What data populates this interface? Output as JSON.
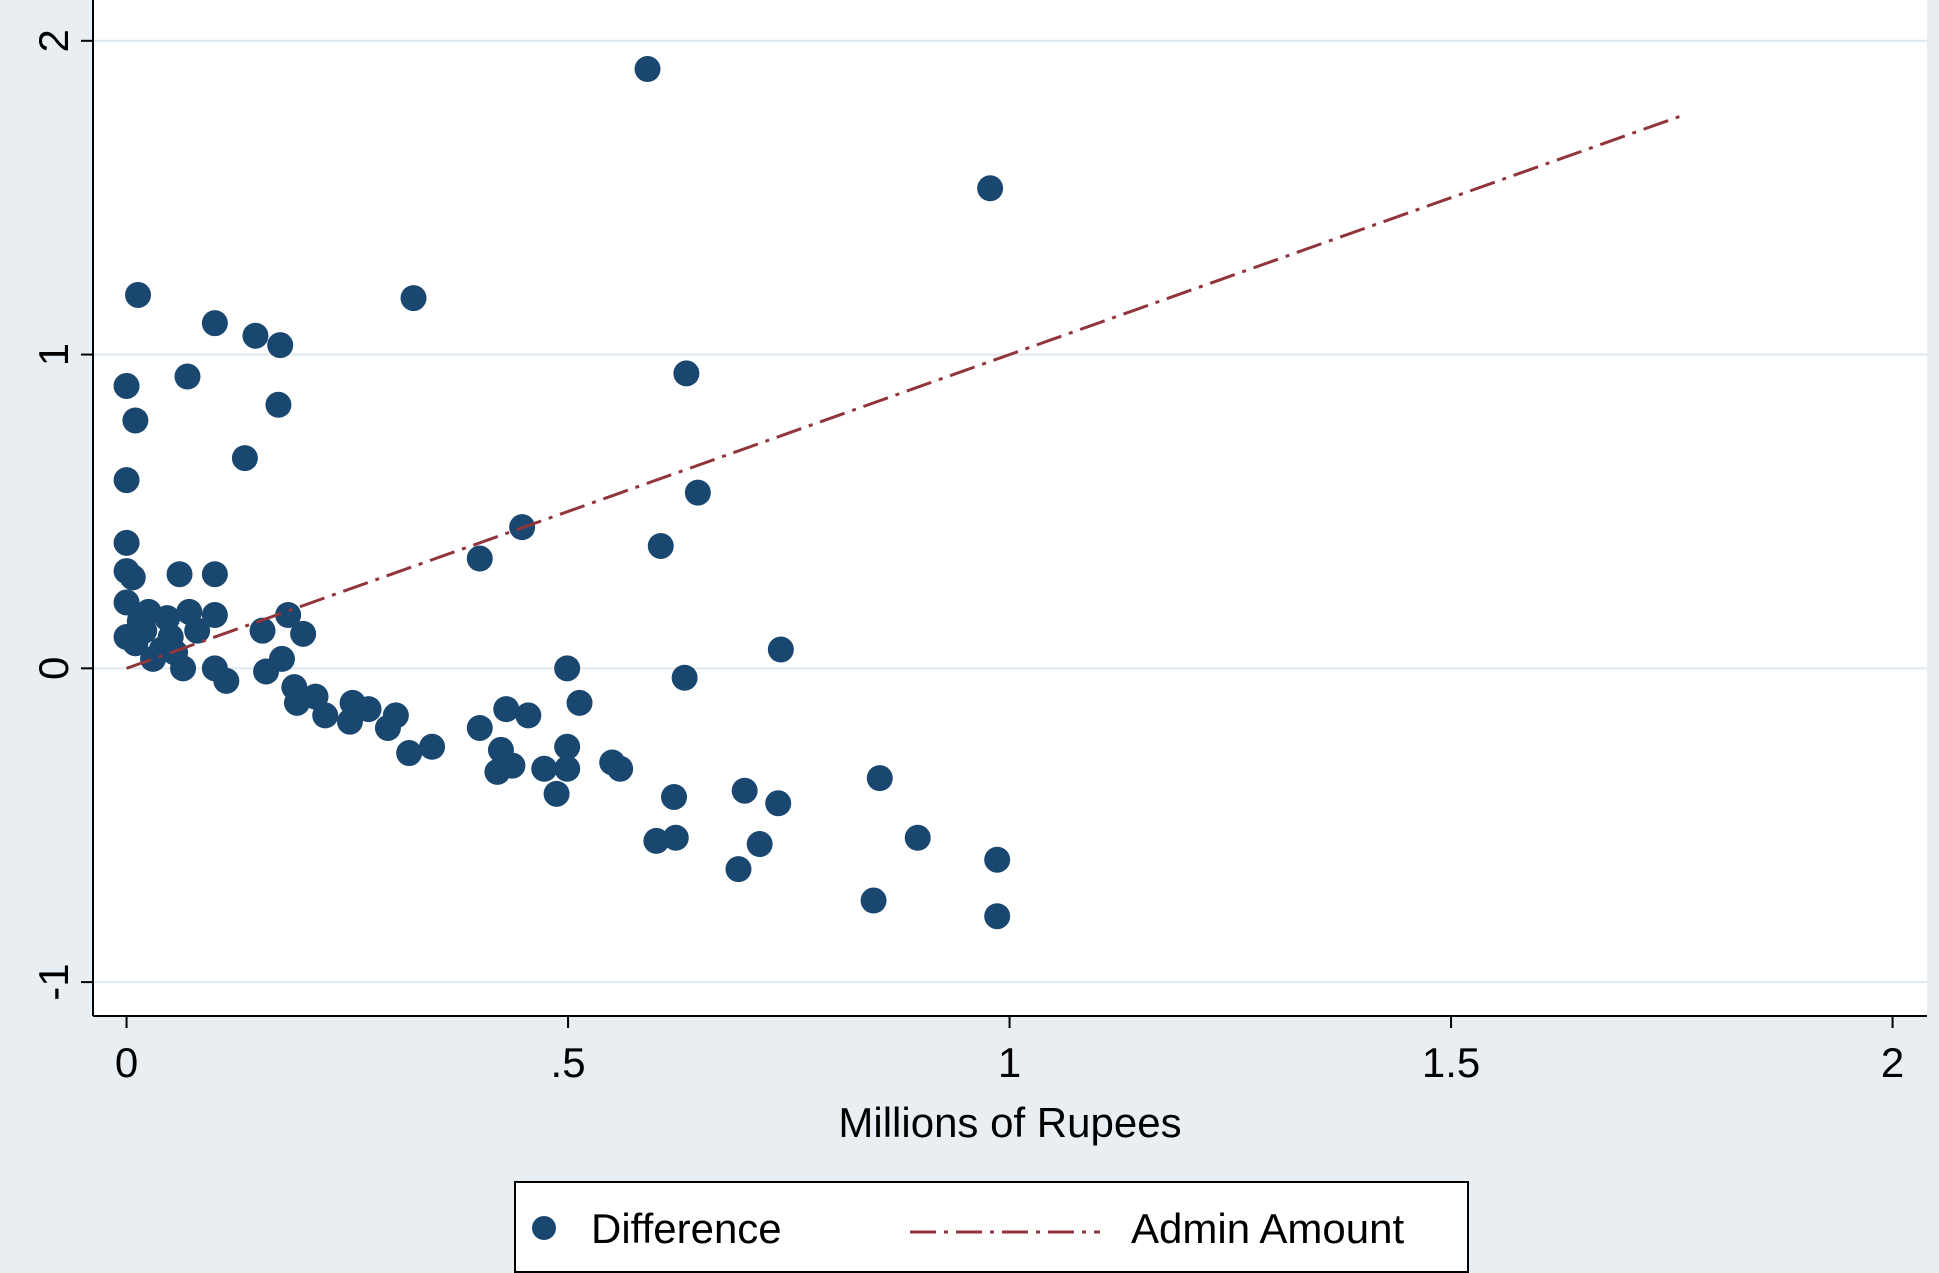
{
  "chart_data": {
    "type": "scatter",
    "x_label": "Millions of Rupees",
    "xlim": [
      -0.038,
      2.039
    ],
    "ylim": [
      -1.108,
      2.13
    ],
    "xticks": [
      0,
      {
        "value": 0.5,
        "label": ".5"
      },
      1,
      1.5,
      2
    ],
    "yticks": [
      -1,
      0,
      1,
      2
    ],
    "grid": true,
    "series": [
      {
        "name": "Difference",
        "color": "#1a476f",
        "type": "scatter",
        "x": [
          0.59,
          0.978,
          0.013,
          0.325,
          0.1,
          0.146,
          0.174,
          0,
          0.069,
          0.634,
          0.172,
          0.01,
          0.134,
          0,
          0.647,
          0.448,
          0,
          0.605,
          0.4,
          0,
          0.007,
          0.06,
          0.1,
          0,
          0,
          0.025,
          0.046,
          0.071,
          0.1,
          0.01,
          0.04,
          0.064,
          0.1,
          0.113,
          0.154,
          0.158,
          0.176,
          0.183,
          0.2,
          0.19,
          0.193,
          0.214,
          0.225,
          0.253,
          0.256,
          0.274,
          0.296,
          0.305,
          0.32,
          0.346,
          0.4,
          0.43,
          0.455,
          0.424,
          0.42,
          0.437,
          0.473,
          0.487,
          0.499,
          0.499,
          0.499,
          0.513,
          0.55,
          0.559,
          0.632,
          0.62,
          0.6,
          0.622,
          0.7,
          0.738,
          0.717,
          0.693,
          0.741,
          0.853,
          0.896,
          0.846,
          0.986,
          0.986,
          0.02,
          0.05,
          0.03,
          0.08,
          0.015,
          0.055
        ],
        "values": [
          1.91,
          1.53,
          1.19,
          1.18,
          1.1,
          1.06,
          1.03,
          0.9,
          0.93,
          0.94,
          0.84,
          0.79,
          0.67,
          0.6,
          0.56,
          0.45,
          0.4,
          0.39,
          0.35,
          0.31,
          0.29,
          0.3,
          0.3,
          0.21,
          0.1,
          0.18,
          0.16,
          0.18,
          0.17,
          0.08,
          0.06,
          0,
          0,
          -0.04,
          0.12,
          -0.01,
          0.03,
          0.17,
          0.11,
          -0.06,
          -0.11,
          -0.09,
          -0.15,
          -0.17,
          -0.11,
          -0.13,
          -0.19,
          -0.15,
          -0.27,
          -0.25,
          -0.19,
          -0.13,
          -0.15,
          -0.26,
          -0.33,
          -0.31,
          -0.32,
          -0.4,
          0,
          -0.25,
          -0.32,
          -0.11,
          -0.3,
          -0.32,
          -0.03,
          -0.41,
          -0.55,
          -0.54,
          -0.39,
          -0.43,
          -0.56,
          -0.64,
          0.06,
          -0.35,
          -0.54,
          -0.74,
          -0.61,
          -0.79,
          0.12,
          0.1,
          0.03,
          0.12,
          0.15,
          0.05
        ]
      },
      {
        "name": "Admin Amount",
        "color": "#90353b",
        "type": "line",
        "x": [
          0,
          1.76
        ],
        "values": [
          0,
          1.76
        ]
      }
    ]
  }
}
